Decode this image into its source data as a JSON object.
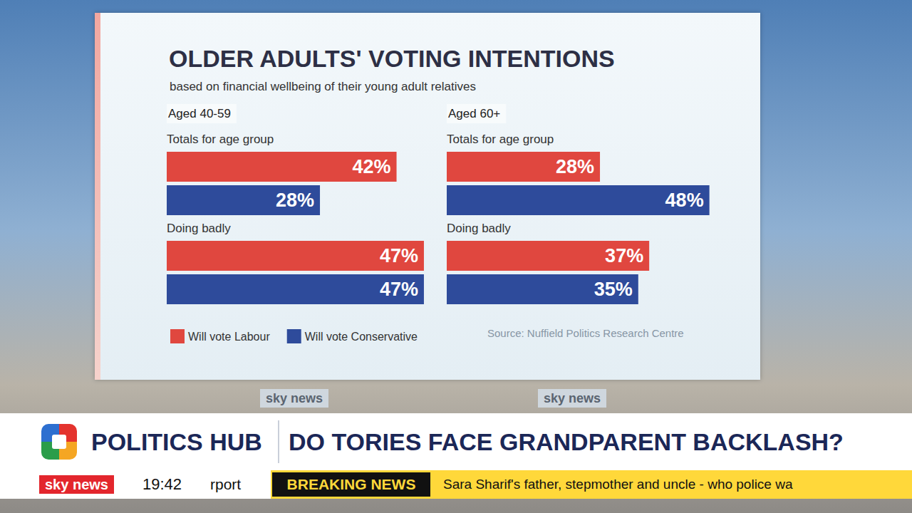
{
  "header": {
    "title": "OLDER ADULTS' VOTING INTENTIONS",
    "subtitle": "based on financial wellbeing of their young adult relatives",
    "source": "Source: Nuffield Politics Research Centre"
  },
  "chart_data": [
    {
      "type": "bar",
      "orientation": "horizontal",
      "title": "Aged 40-59",
      "categories": [
        "Totals for age group",
        "Doing badly"
      ],
      "series": [
        {
          "name": "Will vote Labour",
          "color": "#e0473f",
          "values": [
            42,
            47
          ],
          "value_labels": [
            "42%",
            "47%"
          ]
        },
        {
          "name": "Will vote Conservative",
          "color": "#2e4b9b",
          "values": [
            28,
            47
          ],
          "value_labels": [
            "28%",
            "47%"
          ]
        }
      ],
      "xlim": [
        0,
        50
      ],
      "data_labels": true,
      "tick_labels": false,
      "grid": false,
      "legend": "bottom"
    },
    {
      "type": "bar",
      "orientation": "horizontal",
      "title": "Aged 60+",
      "categories": [
        "Totals for age group",
        "Doing badly"
      ],
      "series": [
        {
          "name": "Will vote Labour",
          "color": "#e0473f",
          "values": [
            28,
            37
          ],
          "value_labels": [
            "28%",
            "37%"
          ]
        },
        {
          "name": "Will vote Conservative",
          "color": "#2e4b9b",
          "values": [
            48,
            35
          ],
          "value_labels": [
            "48%",
            "35%"
          ]
        }
      ],
      "xlim": [
        0,
        50
      ],
      "data_labels": true,
      "tick_labels": false,
      "grid": false
    }
  ],
  "banner": {
    "programme": "POLITICS HUB",
    "headline": "DO TORIES FACE GRANDPARENT BACKLASH?",
    "channel": "sky news",
    "time": "19:42",
    "ticker_previous": "rport",
    "breaking": "BREAKING NEWS",
    "ticker": "Sara Sharif's father, stepmother and uncle - who police wa"
  }
}
